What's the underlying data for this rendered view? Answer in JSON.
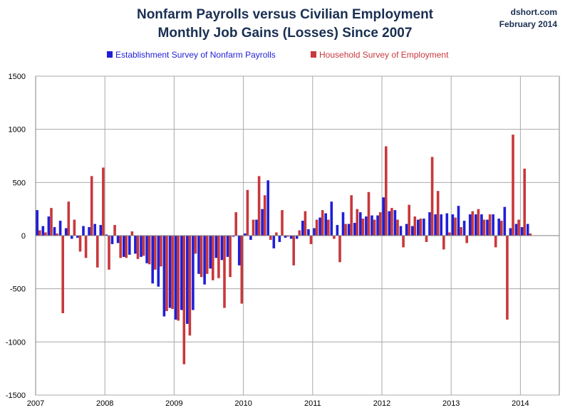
{
  "header": {
    "title_line1": "Nonfarm Payrolls versus Civilian Employment",
    "title_line2": "Monthly Job Gains (Losses) Since 2007",
    "source": "dshort.com",
    "date": "February 2014"
  },
  "chart_data": {
    "type": "bar",
    "title": "Nonfarm Payrolls versus Civilian Employment / Monthly Job Gains (Losses) Since 2007",
    "xlabel": "",
    "ylabel": "",
    "ylim": [
      -1500,
      1500
    ],
    "yticks": [
      -1500,
      -1000,
      -500,
      0,
      500,
      1000,
      1500
    ],
    "xticks": [
      "2007",
      "2008",
      "2009",
      "2010",
      "2011",
      "2012",
      "2013",
      "2014"
    ],
    "start_month": "2007-01",
    "months": 86,
    "grid": true,
    "legend_position": "top-center",
    "colors": {
      "payrolls": "#1f1fd6",
      "household": "#c8383c",
      "grid": "#a9a9a9"
    },
    "series": [
      {
        "name": "Establishment Survey of Nonfarm Payrolls",
        "values": [
          240,
          90,
          180,
          80,
          140,
          70,
          -30,
          -20,
          90,
          80,
          110,
          100,
          10,
          -80,
          -70,
          -200,
          -180,
          -170,
          -200,
          -260,
          -450,
          -480,
          -760,
          -680,
          -790,
          -700,
          -830,
          -700,
          -360,
          -460,
          -310,
          -210,
          -230,
          -200,
          -10,
          -280,
          20,
          -40,
          150,
          250,
          520,
          -120,
          -60,
          -20,
          -30,
          -30,
          140,
          60,
          70,
          170,
          210,
          320,
          100,
          220,
          110,
          120,
          220,
          180,
          190,
          190,
          360,
          230,
          240,
          90,
          110,
          90,
          150,
          160,
          220,
          200,
          200,
          210,
          200,
          280,
          140,
          200,
          200,
          200,
          150,
          200,
          160,
          270,
          70,
          110,
          80,
          110
        ]
      },
      {
        "name": "Household Survey of Employment",
        "values": [
          50,
          30,
          260,
          20,
          -730,
          320,
          150,
          -150,
          -210,
          560,
          -300,
          640,
          -320,
          100,
          -210,
          -210,
          40,
          -220,
          -190,
          -270,
          -320,
          -290,
          -710,
          -690,
          -800,
          -1210,
          -940,
          -170,
          -390,
          -360,
          -420,
          -400,
          -680,
          -390,
          220,
          -640,
          430,
          150,
          560,
          380,
          -40,
          30,
          240,
          -10,
          -280,
          50,
          230,
          -80,
          150,
          240,
          150,
          -30,
          -250,
          110,
          380,
          250,
          160,
          410,
          150,
          220,
          840,
          260,
          150,
          -110,
          290,
          180,
          160,
          -60,
          740,
          420,
          -130,
          30,
          170,
          80,
          -70,
          230,
          250,
          150,
          200,
          -110,
          140,
          -790,
          950,
          150,
          630,
          20
        ]
      }
    ]
  }
}
